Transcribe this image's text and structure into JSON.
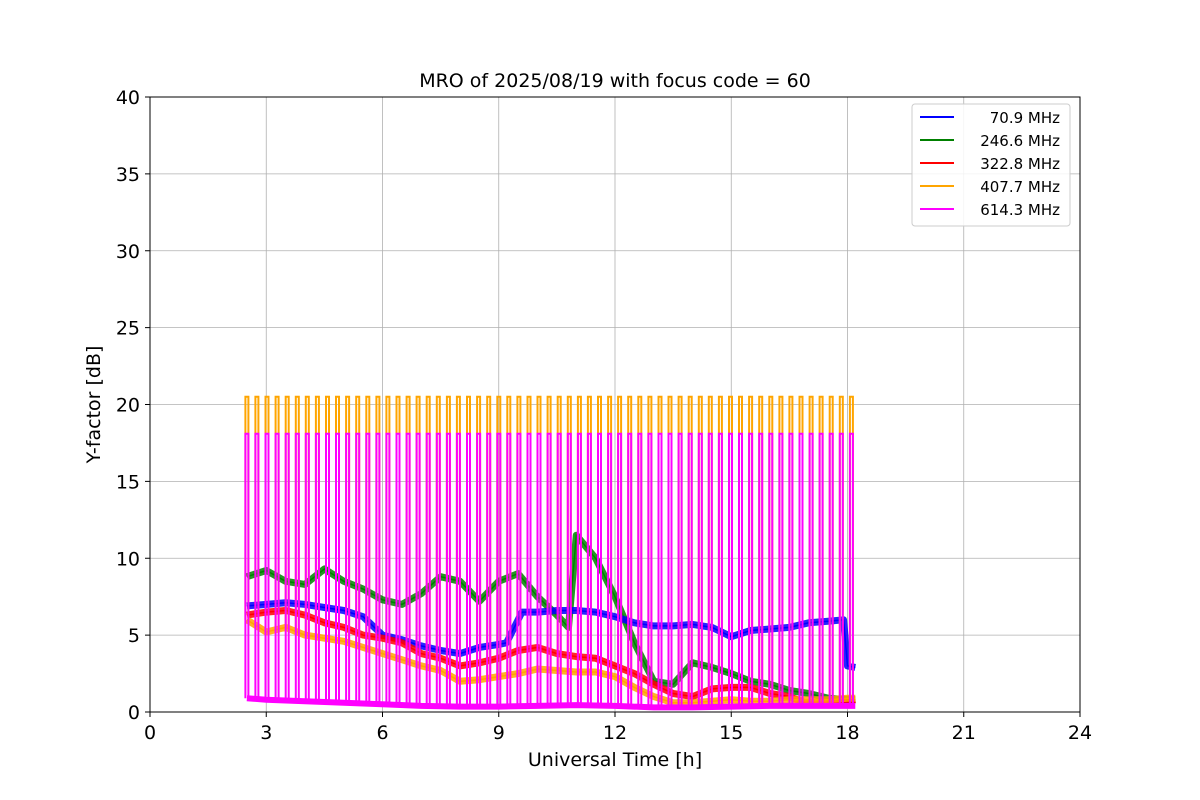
{
  "chart_data": {
    "type": "line",
    "title": "MRO of 2025/08/19 with focus code = 60",
    "xlabel": "Universal Time [h]",
    "ylabel": "Y-factor [dB]",
    "xlim": [
      0,
      24
    ],
    "ylim": [
      0,
      40
    ],
    "xticks": [
      0,
      3,
      6,
      9,
      12,
      15,
      18,
      21,
      24
    ],
    "yticks": [
      0,
      5,
      10,
      15,
      20,
      25,
      30,
      35,
      40
    ],
    "grid": true,
    "legend_position": "upper-right",
    "pulses": {
      "start": 2.5,
      "end": 18.1,
      "count": 61,
      "series_peaks": {
        "407.7 MHz": 20.5,
        "614.3 MHz": 18.1
      }
    },
    "series": [
      {
        "name": "70.9 MHz",
        "color": "#0000ff",
        "x": [
          2.5,
          3.0,
          3.5,
          4.0,
          4.5,
          5.0,
          5.5,
          6.0,
          6.5,
          7.0,
          7.5,
          8.0,
          8.5,
          9.0,
          9.2,
          9.6,
          10.0,
          10.5,
          11.0,
          11.5,
          12.0,
          12.5,
          13.0,
          13.5,
          14.0,
          14.5,
          15.0,
          15.5,
          16.0,
          16.5,
          17.0,
          17.5,
          17.9,
          18.0,
          18.2
        ],
        "y": [
          6.9,
          7.0,
          7.1,
          7.0,
          6.8,
          6.6,
          6.2,
          5.0,
          4.7,
          4.3,
          4.0,
          3.8,
          4.2,
          4.4,
          4.5,
          6.5,
          6.5,
          6.6,
          6.6,
          6.5,
          6.2,
          5.8,
          5.6,
          5.6,
          5.7,
          5.5,
          4.9,
          5.3,
          5.4,
          5.5,
          5.8,
          5.9,
          6.0,
          3.0,
          2.9
        ]
      },
      {
        "name": "246.6 MHz",
        "color": "#008000",
        "x": [
          2.5,
          3.0,
          3.5,
          4.0,
          4.5,
          5.0,
          5.5,
          6.0,
          6.5,
          7.0,
          7.5,
          8.0,
          8.5,
          9.0,
          9.5,
          10.0,
          10.5,
          10.8,
          11.0,
          11.5,
          12.0,
          12.5,
          13.0,
          13.5,
          14.0,
          14.5,
          15.0,
          15.5,
          16.0,
          16.5,
          17.0,
          17.5,
          18.0,
          18.2
        ],
        "y": [
          8.8,
          9.2,
          8.5,
          8.3,
          9.3,
          8.5,
          8.0,
          7.3,
          7.0,
          7.7,
          8.8,
          8.5,
          7.2,
          8.5,
          9.0,
          7.5,
          6.3,
          5.5,
          11.5,
          10.0,
          7.5,
          4.5,
          2.0,
          1.8,
          3.2,
          2.9,
          2.5,
          2.0,
          1.8,
          1.4,
          1.2,
          0.9,
          0.8,
          0.8
        ]
      },
      {
        "name": "322.8 MHz",
        "color": "#ff0000",
        "x": [
          2.5,
          3.0,
          3.5,
          4.0,
          4.5,
          5.0,
          5.5,
          6.0,
          6.5,
          7.0,
          7.5,
          8.0,
          8.5,
          9.0,
          9.5,
          10.0,
          10.5,
          11.0,
          11.5,
          12.0,
          12.5,
          13.0,
          13.5,
          14.0,
          14.5,
          15.0,
          15.5,
          16.0,
          16.5,
          17.0,
          17.5,
          18.0,
          18.2
        ],
        "y": [
          6.3,
          6.5,
          6.6,
          6.3,
          5.8,
          5.5,
          5.0,
          4.8,
          4.5,
          3.8,
          3.5,
          3.0,
          3.2,
          3.5,
          4.0,
          4.2,
          3.8,
          3.6,
          3.5,
          3.0,
          2.5,
          1.8,
          1.2,
          1.0,
          1.5,
          1.6,
          1.6,
          1.2,
          1.0,
          0.5,
          0.6,
          0.7,
          0.8
        ]
      },
      {
        "name": "407.7 MHz",
        "color": "#ffa500",
        "x": [
          2.5,
          3.0,
          3.5,
          4.0,
          4.5,
          5.0,
          5.5,
          6.0,
          6.5,
          7.0,
          7.5,
          8.0,
          8.5,
          9.0,
          9.5,
          10.0,
          10.5,
          11.0,
          11.5,
          12.0,
          12.5,
          13.0,
          13.5,
          14.0,
          14.5,
          15.0,
          15.5,
          16.0,
          16.5,
          17.0,
          17.5,
          18.0,
          18.2
        ],
        "y": [
          6.0,
          5.2,
          5.5,
          5.0,
          4.8,
          4.6,
          4.2,
          3.8,
          3.4,
          3.0,
          2.7,
          2.0,
          2.1,
          2.3,
          2.5,
          2.8,
          2.7,
          2.6,
          2.6,
          2.3,
          1.6,
          1.0,
          0.6,
          0.6,
          0.7,
          0.8,
          0.7,
          0.7,
          0.8,
          0.8,
          0.8,
          0.9,
          0.9
        ]
      },
      {
        "name": "614.3 MHz",
        "color": "#ff00ff",
        "x": [
          2.5,
          3.0,
          4.0,
          5.0,
          6.0,
          7.0,
          8.0,
          9.0,
          10.0,
          11.0,
          12.0,
          13.0,
          14.0,
          15.0,
          16.0,
          17.0,
          18.0,
          18.2
        ],
        "y": [
          0.9,
          0.8,
          0.7,
          0.6,
          0.5,
          0.4,
          0.35,
          0.35,
          0.4,
          0.45,
          0.4,
          0.3,
          0.3,
          0.35,
          0.4,
          0.4,
          0.4,
          0.4
        ]
      }
    ]
  }
}
